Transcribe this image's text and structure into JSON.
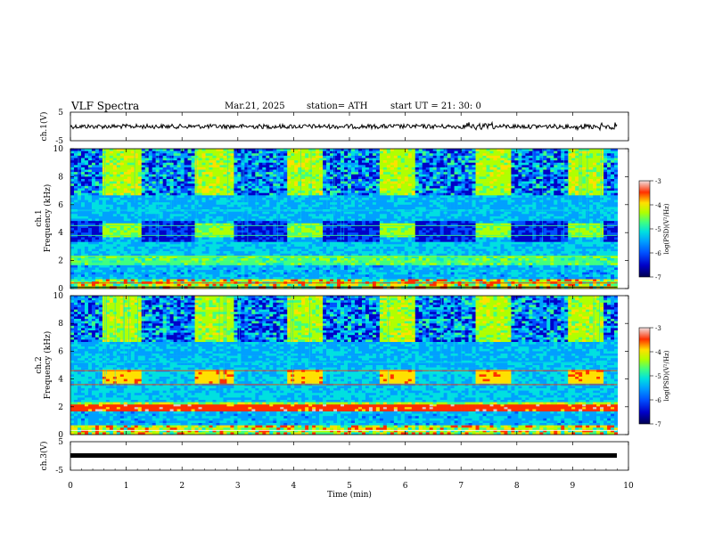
{
  "header": {
    "title": "VLF  Spectra",
    "date": "Mar.21, 2025",
    "station": "station= ATH",
    "start": "start  UT  =  21: 30: 0"
  },
  "chart_data": [
    {
      "type": "line",
      "panel": "ch1-waveform",
      "ylabel": "ch.1(V)",
      "yticks": [
        "5",
        "-5"
      ],
      "ylim": [
        -5,
        5
      ],
      "xlim": [
        0,
        10
      ],
      "data_end_min": 9.8,
      "baseline_value": 0,
      "grid": false
    },
    {
      "type": "heatmap",
      "panel": "ch1-spectrogram",
      "ylabel": "ch.1\nFrequency (kHz)",
      "yticks": [
        "0",
        "2",
        "4",
        "6",
        "8",
        "10"
      ],
      "ylim": [
        0,
        10
      ],
      "xlim": [
        0,
        10
      ],
      "tone_segments_min": [
        [
          0.6,
          1.25
        ],
        [
          2.25,
          2.9
        ],
        [
          3.9,
          4.55
        ],
        [
          5.55,
          6.2
        ],
        [
          7.25,
          7.9
        ],
        [
          8.9,
          9.55
        ]
      ],
      "tone_freq_khz": 4.0,
      "colorbar": {
        "label": "log(PSD)(V²/Hz)",
        "ticks": [
          "-3",
          "-4",
          "-5",
          "-6",
          "-7"
        ],
        "range": [
          -7,
          -3
        ]
      }
    },
    {
      "type": "heatmap",
      "panel": "ch2-spectrogram",
      "ylabel": "ch.2\nFrequency (kHz)",
      "yticks": [
        "0",
        "2",
        "4",
        "6",
        "8",
        "10"
      ],
      "ylim": [
        0,
        10
      ],
      "xlim": [
        0,
        10
      ],
      "tone_segments_min": [
        [
          0.6,
          1.25
        ],
        [
          2.25,
          2.9
        ],
        [
          3.9,
          4.55
        ],
        [
          5.55,
          6.2
        ],
        [
          7.25,
          7.9
        ],
        [
          8.9,
          9.55
        ]
      ],
      "tone_freq_khz": 4.0,
      "colorbar": {
        "label": "log(PSD)(V²/Hz)",
        "ticks": [
          "-3",
          "-4",
          "-5",
          "-6",
          "-7"
        ],
        "range": [
          -7,
          -3
        ]
      }
    },
    {
      "type": "line",
      "panel": "ch3-waveform",
      "ylabel": "ch.3(V)",
      "yticks": [
        "5",
        "-5"
      ],
      "ylim": [
        -5,
        5
      ],
      "xlim": [
        0,
        10
      ],
      "data_end_min": 9.8,
      "baseline_value": 0,
      "grid": false
    }
  ],
  "xaxis": {
    "label": "Time  (min)",
    "ticks": [
      "0",
      "1",
      "2",
      "3",
      "4",
      "5",
      "6",
      "7",
      "8",
      "9",
      "10"
    ]
  },
  "colors": {
    "spectrum": [
      "#000050",
      "#0000c8",
      "#0050ff",
      "#00a0ff",
      "#00e0e0",
      "#40ff80",
      "#b0ff00",
      "#ffe000",
      "#ff3000",
      "#e0c8c8"
    ]
  }
}
